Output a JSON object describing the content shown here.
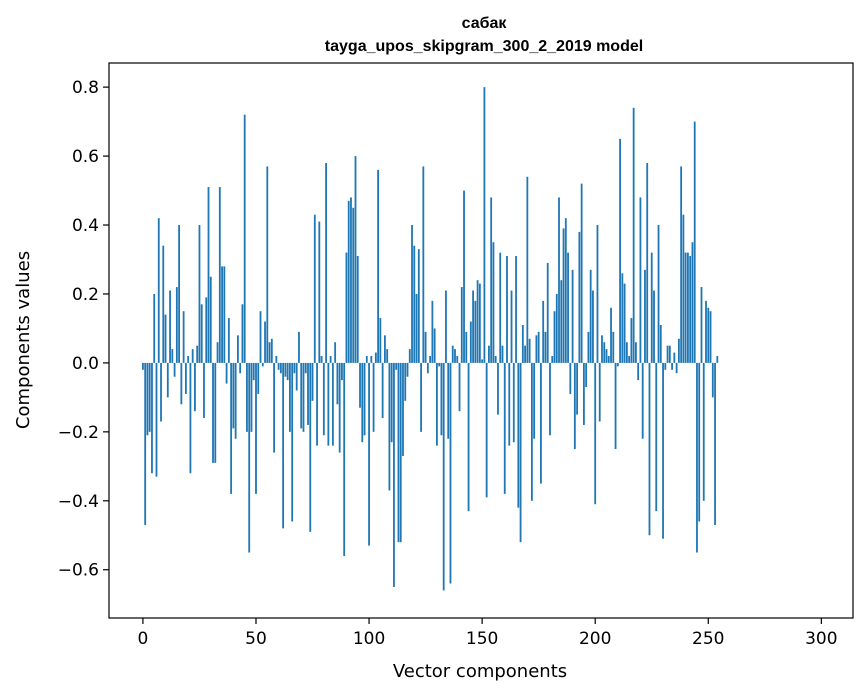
{
  "chart_data": {
    "type": "bar",
    "title": "сабак",
    "subtitle": "tayga_upos_skipgram_300_2_2019 model",
    "xlabel": "Vector components",
    "ylabel": "Components values",
    "xlim": [
      -15,
      314
    ],
    "ylim": [
      -0.74,
      0.87
    ],
    "xticks": [
      0,
      50,
      100,
      150,
      200,
      250,
      300
    ],
    "yticks": [
      -0.6,
      -0.4,
      -0.2,
      0.0,
      0.2,
      0.4,
      0.6,
      0.8
    ],
    "ytick_labels": [
      "−0.6",
      "−0.4",
      "−0.2",
      "0.0",
      "0.2",
      "0.4",
      "0.6",
      "0.8"
    ],
    "bar_color": "#1f77b4",
    "grid": false,
    "values": [
      -0.02,
      -0.47,
      -0.21,
      -0.2,
      -0.32,
      0.2,
      -0.33,
      0.42,
      -0.17,
      0.34,
      0.14,
      -0.1,
      0.21,
      0.04,
      -0.04,
      0.22,
      0.4,
      -0.12,
      0.15,
      -0.09,
      0.02,
      -0.32,
      0.04,
      -0.14,
      0.05,
      0.4,
      0.17,
      -0.16,
      0.19,
      0.51,
      0.25,
      -0.29,
      -0.29,
      0.06,
      0.51,
      0.28,
      0.28,
      -0.06,
      0.13,
      -0.38,
      -0.19,
      -0.22,
      0.08,
      -0.03,
      0.17,
      0.72,
      -0.2,
      -0.55,
      -0.2,
      -0.05,
      -0.38,
      -0.09,
      0.15,
      -0.01,
      0.12,
      0.57,
      0.06,
      0.07,
      -0.26,
      0.02,
      -0.02,
      -0.03,
      -0.48,
      -0.04,
      -0.05,
      -0.2,
      -0.46,
      -0.03,
      -0.08,
      0.09,
      -0.19,
      -0.2,
      -0.03,
      -0.18,
      -0.49,
      -0.11,
      0.43,
      -0.24,
      0.41,
      0.02,
      -0.21,
      0.58,
      -0.24,
      0.02,
      -0.24,
      0.06,
      -0.12,
      -0.26,
      -0.05,
      -0.56,
      0.32,
      0.47,
      0.48,
      0.45,
      0.6,
      0.31,
      -0.13,
      -0.23,
      -0.21,
      0.02,
      -0.53,
      0.02,
      -0.2,
      0.03,
      0.56,
      0.13,
      -0.16,
      0.08,
      0.04,
      -0.37,
      -0.23,
      -0.65,
      -0.02,
      -0.52,
      -0.52,
      -0.27,
      -0.11,
      -0.04,
      0.04,
      0.4,
      0.34,
      0.2,
      0.33,
      -0.2,
      0.57,
      0.09,
      -0.03,
      0.02,
      0.18,
      0.1,
      -0.24,
      -0.01,
      -0.21,
      -0.66,
      0.21,
      -0.22,
      -0.64,
      0.05,
      0.04,
      0.02,
      -0.14,
      0.22,
      0.5,
      0.09,
      -0.43,
      0.12,
      0.21,
      0.18,
      0.24,
      0.23,
      0.01,
      0.8,
      -0.39,
      0.05,
      0.48,
      0.35,
      0.02,
      -0.15,
      0.32,
      0.05,
      -0.38,
      0.31,
      -0.24,
      0.21,
      -0.23,
      0.31,
      -0.42,
      -0.52,
      0.11,
      0.05,
      0.54,
      0.07,
      -0.4,
      -0.22,
      0.08,
      0.09,
      -0.35,
      0.18,
      0.09,
      0.29,
      -0.21,
      0.02,
      0.15,
      0.2,
      0.48,
      0.24,
      0.39,
      0.42,
      0.32,
      -0.09,
      0.27,
      -0.25,
      -0.15,
      0.38,
      0.52,
      -0.18,
      -0.07,
      0.09,
      0.27,
      0.21,
      -0.41,
      0.4,
      -0.17,
      0.08,
      0.06,
      0.04,
      0.02,
      0.16,
      0.09,
      -0.25,
      -0.01,
      0.65,
      0.26,
      0.23,
      0.06,
      0.02,
      0.13,
      0.74,
      0.06,
      -0.05,
      0.48,
      -0.22,
      0.27,
      0.58,
      -0.5,
      0.32,
      0.21,
      -0.43,
      0.4,
      0.11,
      -0.51,
      -0.02,
      0.05,
      0.05,
      -0.02,
      0.03,
      -0.03,
      0.07,
      0.57,
      0.43,
      0.32,
      0.32,
      0.31,
      0.35,
      0.7,
      -0.55,
      -0.46,
      0.22,
      -0.4,
      0.18,
      0.16,
      0.15,
      -0.1,
      -0.47,
      0.02
    ]
  }
}
